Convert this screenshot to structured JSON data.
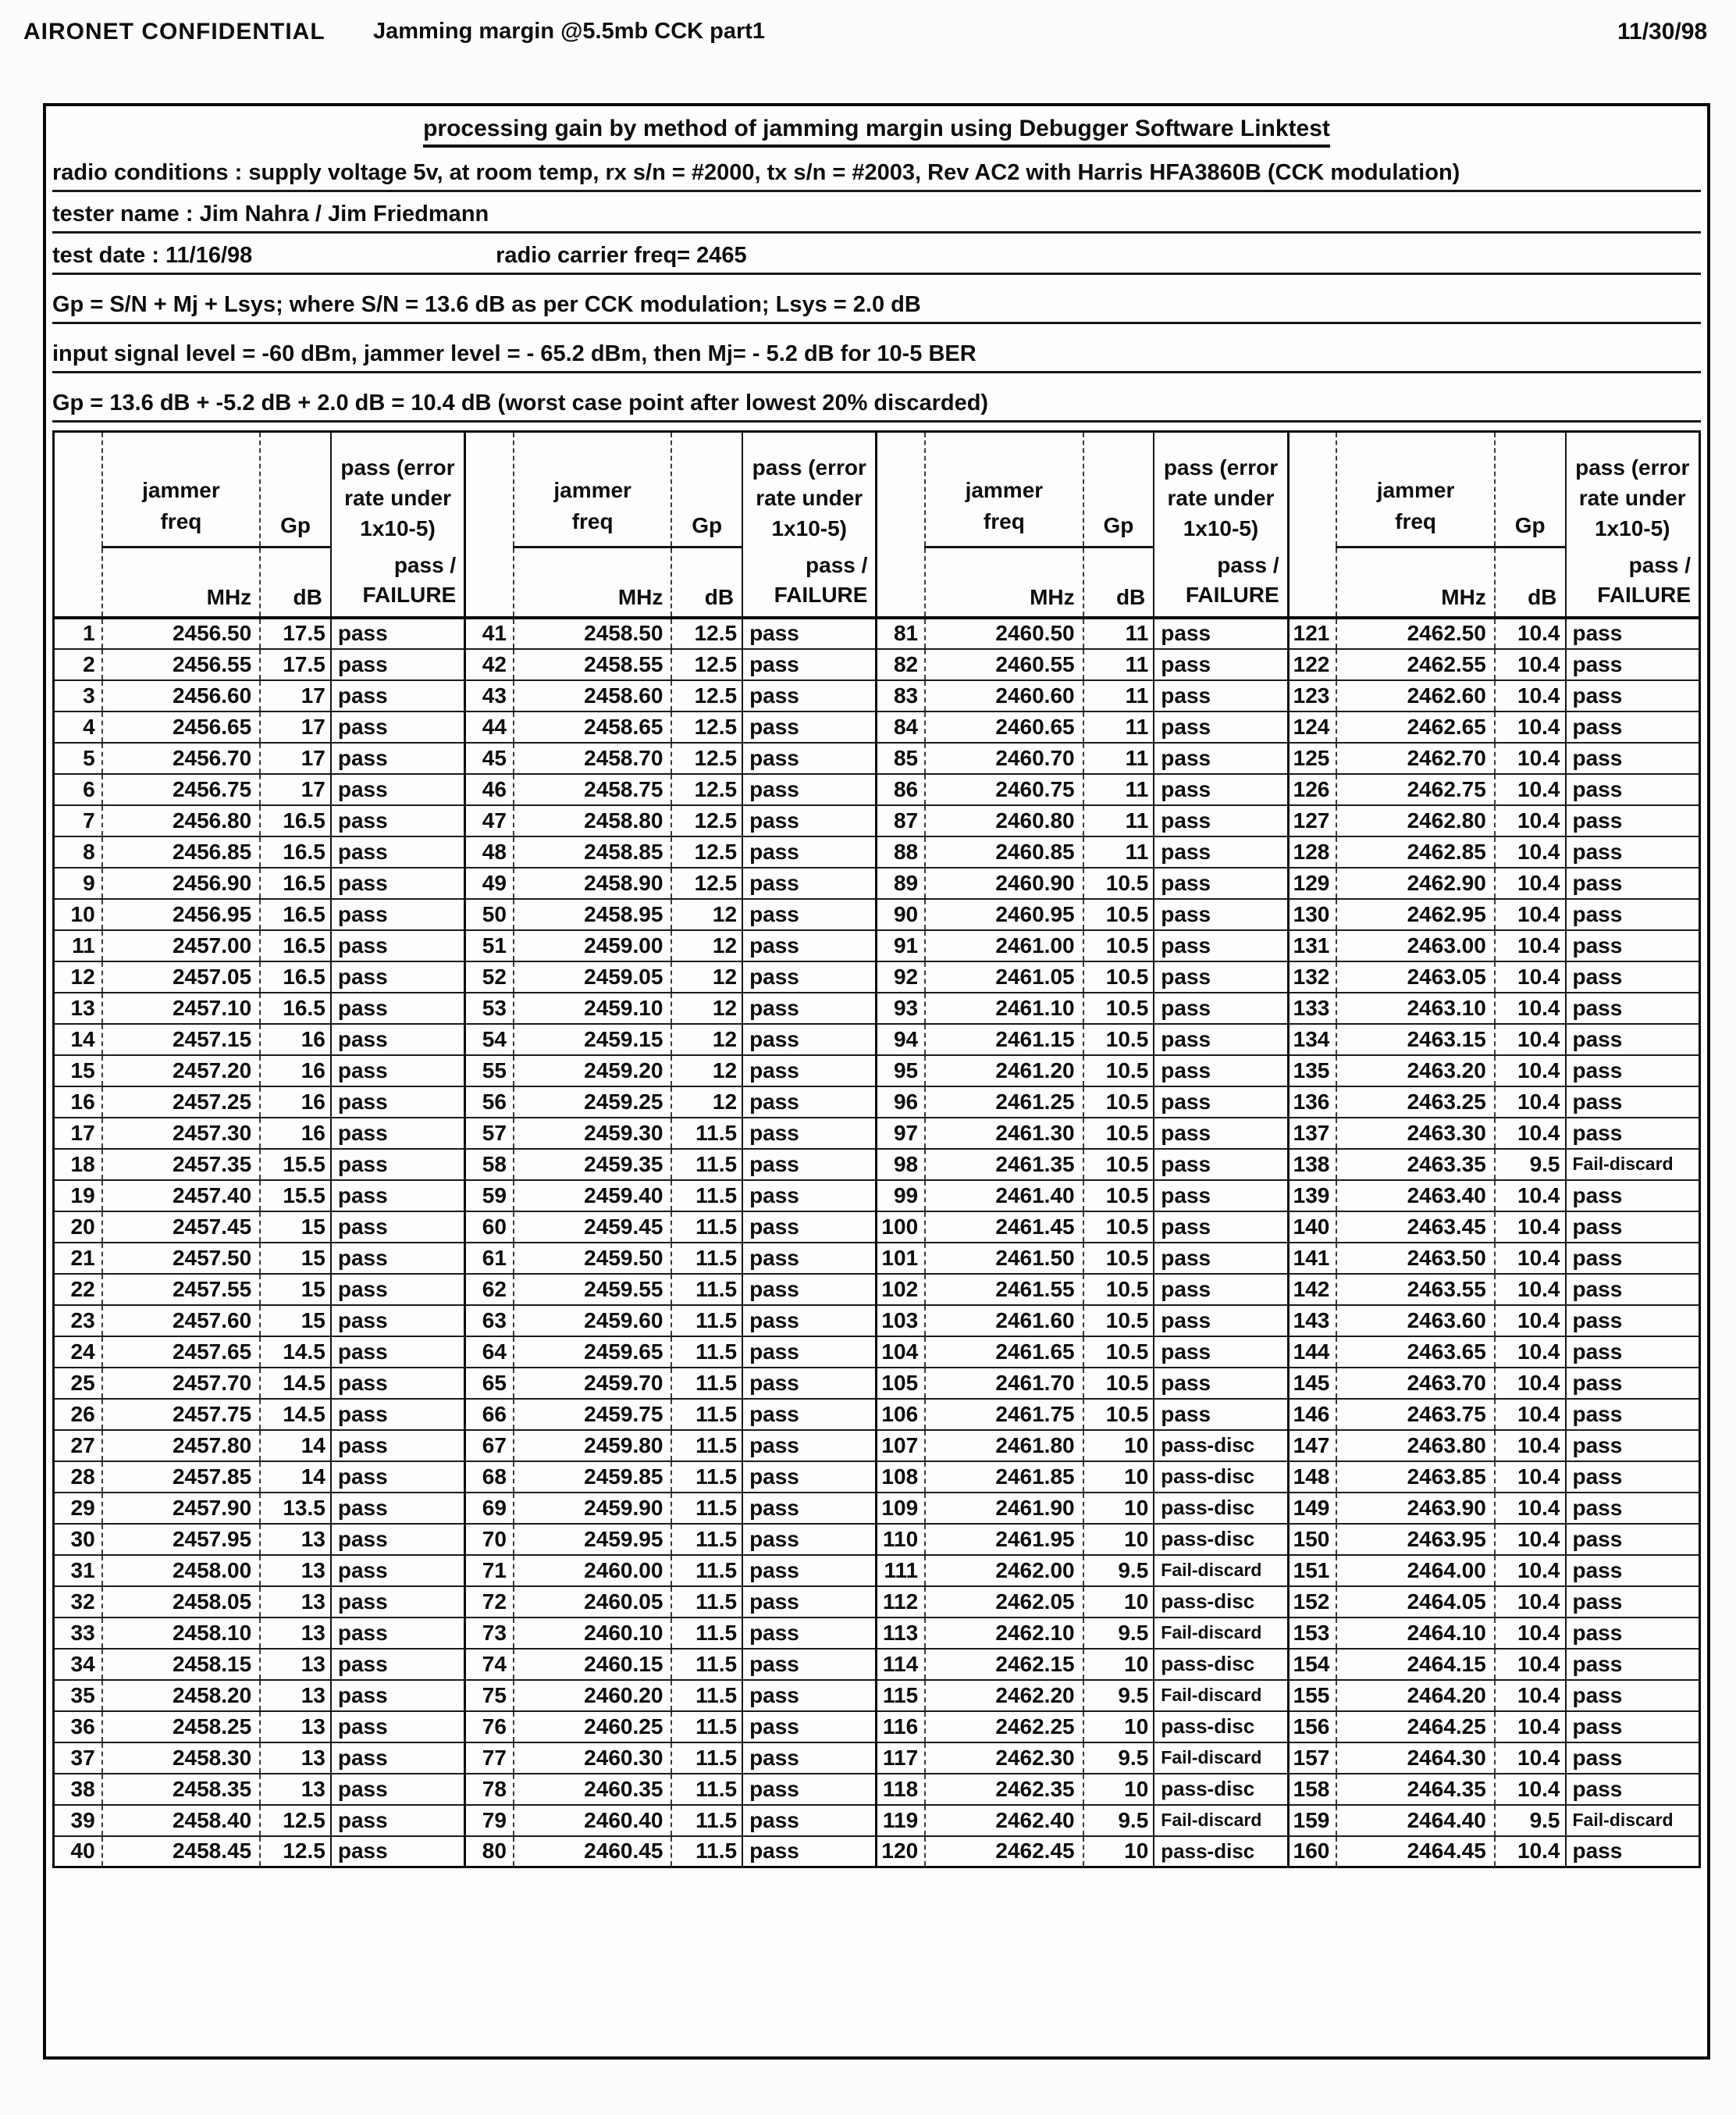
{
  "page_header": {
    "left": "AIRONET CONFIDENTIAL",
    "center": "Jamming margin @5.5mb CCK part1",
    "right": "11/30/98"
  },
  "doc": {
    "title": "processing gain by method of jamming margin using Debugger Software Linktest",
    "conditions": "radio conditions : supply voltage 5v, at room temp, rx s/n = #2000, tx s/n = #2003, Rev AC2 with Harris HFA3860B (CCK modulation)",
    "tester": "tester name : Jim Nahra / Jim Friedmann",
    "test_date": "test date : 11/16/98",
    "carrier": "radio carrier freq= 2465",
    "gp_formula": "Gp = S/N + Mj + Lsys; where S/N = 13.6 dB as per CCK modulation; Lsys = 2.0 dB",
    "input_level": "input signal level = -60 dBm, jammer level = - 65.2 dBm, then Mj= - 5.2 dB for 10-5 BER",
    "gp_calc": "Gp = 13.6 dB + -5.2 dB + 2.0 dB = 10.4 dB (worst case point after lowest 20% discarded)"
  },
  "table": {
    "col_headers": {
      "freq_label": "jammer freq",
      "gp_label": "Gp",
      "pass_label": "pass (error rate under 1x10-5)",
      "unit_freq": "MHz",
      "unit_gp": "dB",
      "passfail_top": "pass /",
      "passfail_bottom": "FAILURE"
    },
    "rows": [
      [
        1,
        "2456.50",
        "17.5",
        "pass"
      ],
      [
        2,
        "2456.55",
        "17.5",
        "pass"
      ],
      [
        3,
        "2456.60",
        "17",
        "pass"
      ],
      [
        4,
        "2456.65",
        "17",
        "pass"
      ],
      [
        5,
        "2456.70",
        "17",
        "pass"
      ],
      [
        6,
        "2456.75",
        "17",
        "pass"
      ],
      [
        7,
        "2456.80",
        "16.5",
        "pass"
      ],
      [
        8,
        "2456.85",
        "16.5",
        "pass"
      ],
      [
        9,
        "2456.90",
        "16.5",
        "pass"
      ],
      [
        10,
        "2456.95",
        "16.5",
        "pass"
      ],
      [
        11,
        "2457.00",
        "16.5",
        "pass"
      ],
      [
        12,
        "2457.05",
        "16.5",
        "pass"
      ],
      [
        13,
        "2457.10",
        "16.5",
        "pass"
      ],
      [
        14,
        "2457.15",
        "16",
        "pass"
      ],
      [
        15,
        "2457.20",
        "16",
        "pass"
      ],
      [
        16,
        "2457.25",
        "16",
        "pass"
      ],
      [
        17,
        "2457.30",
        "16",
        "pass"
      ],
      [
        18,
        "2457.35",
        "15.5",
        "pass"
      ],
      [
        19,
        "2457.40",
        "15.5",
        "pass"
      ],
      [
        20,
        "2457.45",
        "15",
        "pass"
      ],
      [
        21,
        "2457.50",
        "15",
        "pass"
      ],
      [
        22,
        "2457.55",
        "15",
        "pass"
      ],
      [
        23,
        "2457.60",
        "15",
        "pass"
      ],
      [
        24,
        "2457.65",
        "14.5",
        "pass"
      ],
      [
        25,
        "2457.70",
        "14.5",
        "pass"
      ],
      [
        26,
        "2457.75",
        "14.5",
        "pass"
      ],
      [
        27,
        "2457.80",
        "14",
        "pass"
      ],
      [
        28,
        "2457.85",
        "14",
        "pass"
      ],
      [
        29,
        "2457.90",
        "13.5",
        "pass"
      ],
      [
        30,
        "2457.95",
        "13",
        "pass"
      ],
      [
        31,
        "2458.00",
        "13",
        "pass"
      ],
      [
        32,
        "2458.05",
        "13",
        "pass"
      ],
      [
        33,
        "2458.10",
        "13",
        "pass"
      ],
      [
        34,
        "2458.15",
        "13",
        "pass"
      ],
      [
        35,
        "2458.20",
        "13",
        "pass"
      ],
      [
        36,
        "2458.25",
        "13",
        "pass"
      ],
      [
        37,
        "2458.30",
        "13",
        "pass"
      ],
      [
        38,
        "2458.35",
        "13",
        "pass"
      ],
      [
        39,
        "2458.40",
        "12.5",
        "pass"
      ],
      [
        40,
        "2458.45",
        "12.5",
        "pass"
      ],
      [
        41,
        "2458.50",
        "12.5",
        "pass"
      ],
      [
        42,
        "2458.55",
        "12.5",
        "pass"
      ],
      [
        43,
        "2458.60",
        "12.5",
        "pass"
      ],
      [
        44,
        "2458.65",
        "12.5",
        "pass"
      ],
      [
        45,
        "2458.70",
        "12.5",
        "pass"
      ],
      [
        46,
        "2458.75",
        "12.5",
        "pass"
      ],
      [
        47,
        "2458.80",
        "12.5",
        "pass"
      ],
      [
        48,
        "2458.85",
        "12.5",
        "pass"
      ],
      [
        49,
        "2458.90",
        "12.5",
        "pass"
      ],
      [
        50,
        "2458.95",
        "12",
        "pass"
      ],
      [
        51,
        "2459.00",
        "12",
        "pass"
      ],
      [
        52,
        "2459.05",
        "12",
        "pass"
      ],
      [
        53,
        "2459.10",
        "12",
        "pass"
      ],
      [
        54,
        "2459.15",
        "12",
        "pass"
      ],
      [
        55,
        "2459.20",
        "12",
        "pass"
      ],
      [
        56,
        "2459.25",
        "12",
        "pass"
      ],
      [
        57,
        "2459.30",
        "11.5",
        "pass"
      ],
      [
        58,
        "2459.35",
        "11.5",
        "pass"
      ],
      [
        59,
        "2459.40",
        "11.5",
        "pass"
      ],
      [
        60,
        "2459.45",
        "11.5",
        "pass"
      ],
      [
        61,
        "2459.50",
        "11.5",
        "pass"
      ],
      [
        62,
        "2459.55",
        "11.5",
        "pass"
      ],
      [
        63,
        "2459.60",
        "11.5",
        "pass"
      ],
      [
        64,
        "2459.65",
        "11.5",
        "pass"
      ],
      [
        65,
        "2459.70",
        "11.5",
        "pass"
      ],
      [
        66,
        "2459.75",
        "11.5",
        "pass"
      ],
      [
        67,
        "2459.80",
        "11.5",
        "pass"
      ],
      [
        68,
        "2459.85",
        "11.5",
        "pass"
      ],
      [
        69,
        "2459.90",
        "11.5",
        "pass"
      ],
      [
        70,
        "2459.95",
        "11.5",
        "pass"
      ],
      [
        71,
        "2460.00",
        "11.5",
        "pass"
      ],
      [
        72,
        "2460.05",
        "11.5",
        "pass"
      ],
      [
        73,
        "2460.10",
        "11.5",
        "pass"
      ],
      [
        74,
        "2460.15",
        "11.5",
        "pass"
      ],
      [
        75,
        "2460.20",
        "11.5",
        "pass"
      ],
      [
        76,
        "2460.25",
        "11.5",
        "pass"
      ],
      [
        77,
        "2460.30",
        "11.5",
        "pass"
      ],
      [
        78,
        "2460.35",
        "11.5",
        "pass"
      ],
      [
        79,
        "2460.40",
        "11.5",
        "pass"
      ],
      [
        80,
        "2460.45",
        "11.5",
        "pass"
      ],
      [
        81,
        "2460.50",
        "11",
        "pass"
      ],
      [
        82,
        "2460.55",
        "11",
        "pass"
      ],
      [
        83,
        "2460.60",
        "11",
        "pass"
      ],
      [
        84,
        "2460.65",
        "11",
        "pass"
      ],
      [
        85,
        "2460.70",
        "11",
        "pass"
      ],
      [
        86,
        "2460.75",
        "11",
        "pass"
      ],
      [
        87,
        "2460.80",
        "11",
        "pass"
      ],
      [
        88,
        "2460.85",
        "11",
        "pass"
      ],
      [
        89,
        "2460.90",
        "10.5",
        "pass"
      ],
      [
        90,
        "2460.95",
        "10.5",
        "pass"
      ],
      [
        91,
        "2461.00",
        "10.5",
        "pass"
      ],
      [
        92,
        "2461.05",
        "10.5",
        "pass"
      ],
      [
        93,
        "2461.10",
        "10.5",
        "pass"
      ],
      [
        94,
        "2461.15",
        "10.5",
        "pass"
      ],
      [
        95,
        "2461.20",
        "10.5",
        "pass"
      ],
      [
        96,
        "2461.25",
        "10.5",
        "pass"
      ],
      [
        97,
        "2461.30",
        "10.5",
        "pass"
      ],
      [
        98,
        "2461.35",
        "10.5",
        "pass"
      ],
      [
        99,
        "2461.40",
        "10.5",
        "pass"
      ],
      [
        100,
        "2461.45",
        "10.5",
        "pass"
      ],
      [
        101,
        "2461.50",
        "10.5",
        "pass"
      ],
      [
        102,
        "2461.55",
        "10.5",
        "pass"
      ],
      [
        103,
        "2461.60",
        "10.5",
        "pass"
      ],
      [
        104,
        "2461.65",
        "10.5",
        "pass"
      ],
      [
        105,
        "2461.70",
        "10.5",
        "pass"
      ],
      [
        106,
        "2461.75",
        "10.5",
        "pass"
      ],
      [
        107,
        "2461.80",
        "10",
        "pass-disc"
      ],
      [
        108,
        "2461.85",
        "10",
        "pass-disc"
      ],
      [
        109,
        "2461.90",
        "10",
        "pass-disc"
      ],
      [
        110,
        "2461.95",
        "10",
        "pass-disc"
      ],
      [
        111,
        "2462.00",
        "9.5",
        "Fail-discard"
      ],
      [
        112,
        "2462.05",
        "10",
        "pass-disc"
      ],
      [
        113,
        "2462.10",
        "9.5",
        "Fail-discard"
      ],
      [
        114,
        "2462.15",
        "10",
        "pass-disc"
      ],
      [
        115,
        "2462.20",
        "9.5",
        "Fail-discard"
      ],
      [
        116,
        "2462.25",
        "10",
        "pass-disc"
      ],
      [
        117,
        "2462.30",
        "9.5",
        "Fail-discard"
      ],
      [
        118,
        "2462.35",
        "10",
        "pass-disc"
      ],
      [
        119,
        "2462.40",
        "9.5",
        "Fail-discard"
      ],
      [
        120,
        "2462.45",
        "10",
        "pass-disc"
      ],
      [
        121,
        "2462.50",
        "10.4",
        "pass"
      ],
      [
        122,
        "2462.55",
        "10.4",
        "pass"
      ],
      [
        123,
        "2462.60",
        "10.4",
        "pass"
      ],
      [
        124,
        "2462.65",
        "10.4",
        "pass"
      ],
      [
        125,
        "2462.70",
        "10.4",
        "pass"
      ],
      [
        126,
        "2462.75",
        "10.4",
        "pass"
      ],
      [
        127,
        "2462.80",
        "10.4",
        "pass"
      ],
      [
        128,
        "2462.85",
        "10.4",
        "pass"
      ],
      [
        129,
        "2462.90",
        "10.4",
        "pass"
      ],
      [
        130,
        "2462.95",
        "10.4",
        "pass"
      ],
      [
        131,
        "2463.00",
        "10.4",
        "pass"
      ],
      [
        132,
        "2463.05",
        "10.4",
        "pass"
      ],
      [
        133,
        "2463.10",
        "10.4",
        "pass"
      ],
      [
        134,
        "2463.15",
        "10.4",
        "pass"
      ],
      [
        135,
        "2463.20",
        "10.4",
        "pass"
      ],
      [
        136,
        "2463.25",
        "10.4",
        "pass"
      ],
      [
        137,
        "2463.30",
        "10.4",
        "pass"
      ],
      [
        138,
        "2463.35",
        "9.5",
        "Fail-discard"
      ],
      [
        139,
        "2463.40",
        "10.4",
        "pass"
      ],
      [
        140,
        "2463.45",
        "10.4",
        "pass"
      ],
      [
        141,
        "2463.50",
        "10.4",
        "pass"
      ],
      [
        142,
        "2463.55",
        "10.4",
        "pass"
      ],
      [
        143,
        "2463.60",
        "10.4",
        "pass"
      ],
      [
        144,
        "2463.65",
        "10.4",
        "pass"
      ],
      [
        145,
        "2463.70",
        "10.4",
        "pass"
      ],
      [
        146,
        "2463.75",
        "10.4",
        "pass"
      ],
      [
        147,
        "2463.80",
        "10.4",
        "pass"
      ],
      [
        148,
        "2463.85",
        "10.4",
        "pass"
      ],
      [
        149,
        "2463.90",
        "10.4",
        "pass"
      ],
      [
        150,
        "2463.95",
        "10.4",
        "pass"
      ],
      [
        151,
        "2464.00",
        "10.4",
        "pass"
      ],
      [
        152,
        "2464.05",
        "10.4",
        "pass"
      ],
      [
        153,
        "2464.10",
        "10.4",
        "pass"
      ],
      [
        154,
        "2464.15",
        "10.4",
        "pass"
      ],
      [
        155,
        "2464.20",
        "10.4",
        "pass"
      ],
      [
        156,
        "2464.25",
        "10.4",
        "pass"
      ],
      [
        157,
        "2464.30",
        "10.4",
        "pass"
      ],
      [
        158,
        "2464.35",
        "10.4",
        "pass"
      ],
      [
        159,
        "2464.40",
        "9.5",
        "Fail-discard"
      ],
      [
        160,
        "2464.45",
        "10.4",
        "pass"
      ]
    ]
  }
}
